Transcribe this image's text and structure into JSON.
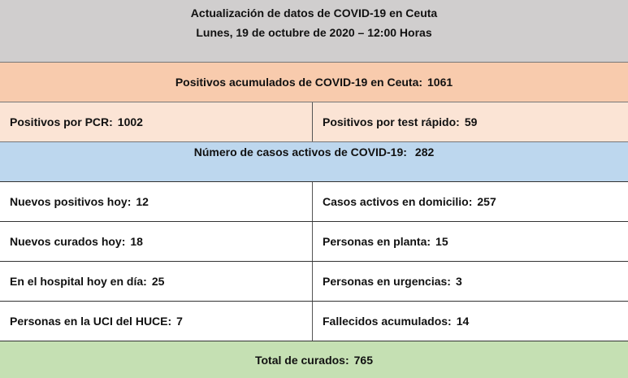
{
  "header": {
    "title": "Actualización de datos de COVID-19 en Ceuta",
    "subtitle": "Lunes, 19 de octubre de 2020 – 12:00 Horas"
  },
  "total_positives": {
    "label": "Positivos acumulados de COVID-19 en Ceuta:",
    "value": 1061
  },
  "positives_split": [
    {
      "label": "Positivos por PCR:",
      "value": 1002
    },
    {
      "label": "Positivos por test rápido:",
      "value": 59
    }
  ],
  "active_cases": {
    "label": "Número de casos activos de COVID-19:",
    "value": 282
  },
  "table": {
    "rows": [
      [
        {
          "label": "Nuevos positivos hoy:",
          "value": 12
        },
        {
          "label": "Casos activos en domicilio:",
          "value": 257
        }
      ],
      [
        {
          "label": "Nuevos curados hoy:",
          "value": 18
        },
        {
          "label": "Personas en planta:",
          "value": 15
        }
      ],
      [
        {
          "label": "En el hospital hoy en día:",
          "value": 25
        },
        {
          "label": "Personas en urgencias:",
          "value": 3
        }
      ],
      [
        {
          "label": "Personas en la UCI del HUCE:",
          "value": 7
        },
        {
          "label": "Fallecidos acumulados:",
          "value": 14
        }
      ]
    ]
  },
  "total_recovered": {
    "label": "Total de curados:",
    "value": 765
  }
}
